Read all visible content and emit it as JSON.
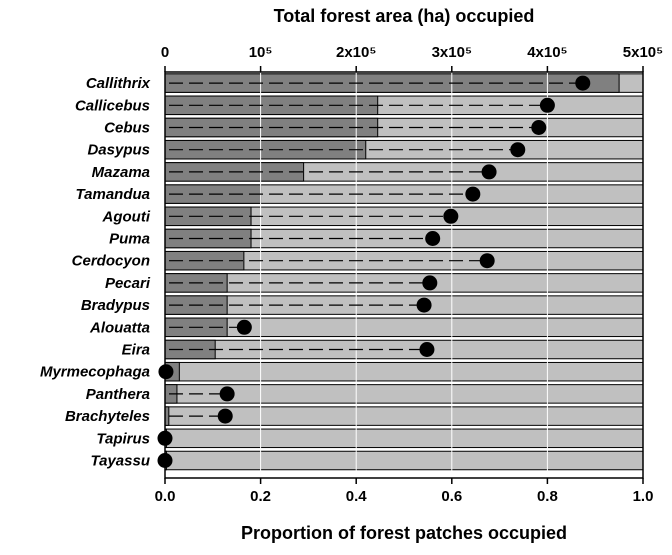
{
  "chart_data": {
    "type": "bar",
    "title": "Total forest area (ha) occupied",
    "xlabel": "Proportion of forest patches occupied",
    "x_top_label": "Total forest area (ha) occupied",
    "x_top_ticks": [
      "0",
      "10⁵",
      "2x10⁵",
      "3x10⁵",
      "4x10⁵",
      "5x10⁵"
    ],
    "x_top_tick_values": [
      0,
      100000,
      200000,
      300000,
      400000,
      500000
    ],
    "x_top_lim": [
      0,
      500000
    ],
    "x_bottom_ticks": [
      "0.0",
      "0.2",
      "0.4",
      "0.6",
      "0.8",
      "1.0"
    ],
    "x_bottom_tick_values": [
      0,
      0.2,
      0.4,
      0.6,
      0.8,
      1.0
    ],
    "x_bottom_lim": [
      0,
      1.0
    ],
    "grid": true,
    "categories": [
      "Callithrix",
      "Callicebus",
      "Cebus",
      "Dasypus",
      "Mazama",
      "Tamandua",
      "Agouti",
      "Puma",
      "Cerdocyon",
      "Pecari",
      "Bradypus",
      "Alouatta",
      "Eira",
      "Myrmecophaga",
      "Panthera",
      "Brachyteles",
      "Tapirus",
      "Tayassu"
    ],
    "series": [
      {
        "name": "",
        "encoding": "bar",
        "axis": "bottom",
        "values": [
          0.95,
          0.445,
          0.445,
          0.42,
          0.29,
          0.2,
          0.18,
          0.18,
          0.165,
          0.13,
          0.13,
          0.13,
          0.105,
          0.03,
          0.025,
          0.008,
          0.003,
          0.003
        ]
      },
      {
        "name": "",
        "encoding": "point",
        "axis": "top",
        "values": [
          437000,
          400000,
          391000,
          369000,
          339000,
          322000,
          299000,
          280000,
          337000,
          277000,
          271000,
          83000,
          274000,
          1000,
          65000,
          63000,
          0,
          0
        ]
      }
    ],
    "colors": {
      "bar_background": "#c0c0c0",
      "bar_foreground": "#808080",
      "point": "#000000",
      "grid": "#ffffff"
    }
  }
}
